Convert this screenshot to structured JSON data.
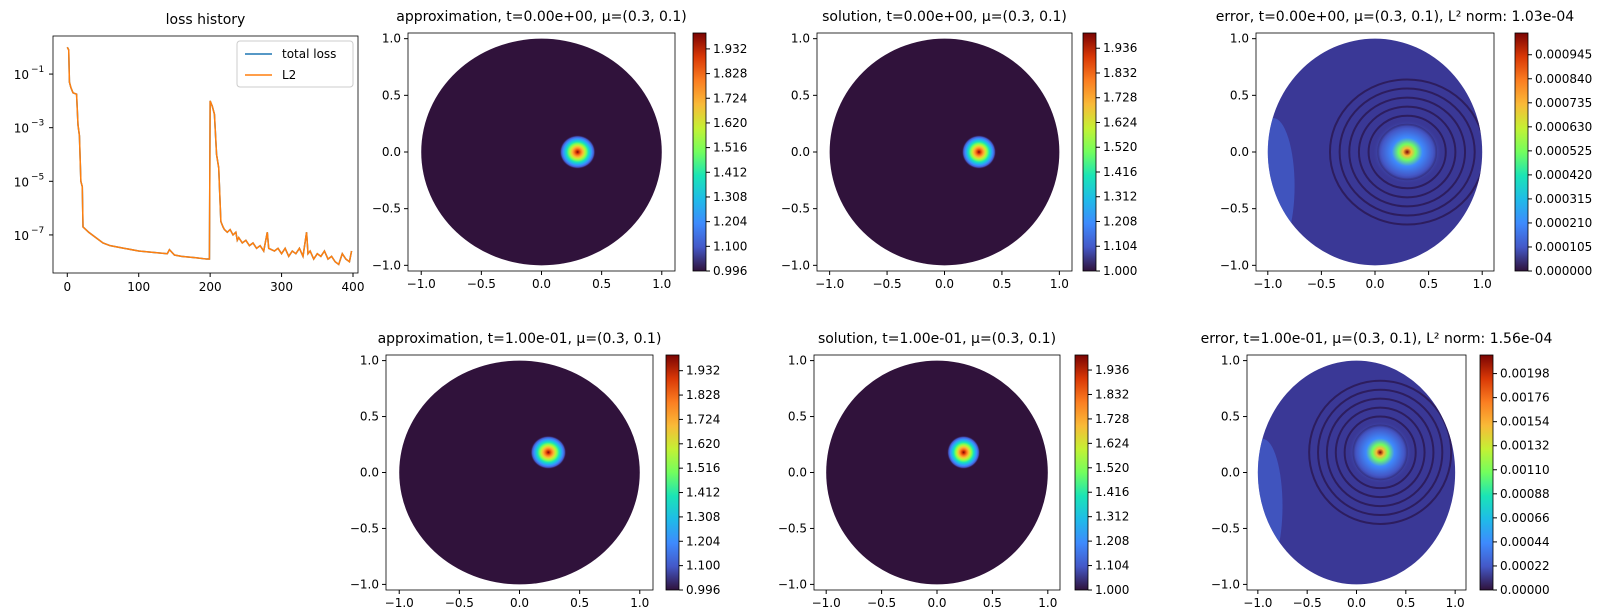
{
  "colors": {
    "total_loss": "#1f77b4",
    "l2": "#ff7f0e",
    "colormap": "turbo"
  },
  "chart_data": [
    {
      "type": "line",
      "title": "loss history",
      "yscale": "log",
      "xlim": [
        -20,
        407
      ],
      "ylim_log10": [
        -8.42,
        0.42
      ],
      "xticks": [
        "0",
        "100",
        "200",
        "300",
        "400"
      ],
      "xtick_values": [
        0,
        100,
        200,
        300,
        400
      ],
      "yticks": [
        "10",
        "10",
        "10",
        "10"
      ],
      "ytick_exponents": [
        "−1",
        "−3",
        "−5",
        "−7"
      ],
      "ytick_values_log10": [
        -1,
        -3,
        -5,
        -7
      ],
      "legend": "top-right",
      "series": [
        {
          "name": "total loss",
          "x": [
            0,
            2,
            3,
            5,
            8,
            13,
            15,
            17,
            19,
            21,
            22,
            30,
            40,
            50,
            60,
            80,
            100,
            120,
            140,
            143,
            150,
            160,
            180,
            195,
            199,
            200,
            203,
            206,
            209,
            212,
            215,
            218,
            220,
            224,
            228,
            232,
            236,
            238,
            240,
            245,
            250,
            255,
            260,
            265,
            270,
            275,
            280,
            282,
            290,
            295,
            300,
            305,
            310,
            315,
            320,
            325,
            330,
            335,
            337,
            340,
            345,
            350,
            355,
            360,
            365,
            370,
            375,
            380,
            385,
            390,
            395,
            398
          ],
          "y_log10": [
            0,
            -0.1,
            -1.3,
            -1.5,
            -1.7,
            -1.75,
            -2.9,
            -3.3,
            -5.0,
            -5.2,
            -6.7,
            -6.9,
            -7.1,
            -7.3,
            -7.4,
            -7.5,
            -7.6,
            -7.65,
            -7.7,
            -7.55,
            -7.75,
            -7.8,
            -7.85,
            -7.9,
            -7.9,
            -2.0,
            -2.2,
            -2.5,
            -4.0,
            -4.5,
            -6.5,
            -6.7,
            -6.8,
            -6.9,
            -6.8,
            -7.0,
            -6.9,
            -7.2,
            -7.1,
            -7.3,
            -7.2,
            -7.4,
            -7.3,
            -7.5,
            -7.4,
            -7.6,
            -6.9,
            -7.5,
            -7.6,
            -7.5,
            -7.7,
            -7.5,
            -7.8,
            -7.6,
            -7.7,
            -7.5,
            -7.8,
            -6.9,
            -7.7,
            -7.6,
            -7.9,
            -7.7,
            -7.8,
            -7.6,
            -7.9,
            -7.8,
            -8.0,
            -8.1,
            -7.7,
            -7.9,
            -8.0,
            -7.6
          ]
        },
        {
          "name": "L2",
          "x": [
            0,
            2,
            3,
            5,
            8,
            13,
            15,
            17,
            19,
            21,
            22,
            30,
            40,
            50,
            60,
            80,
            100,
            120,
            140,
            143,
            150,
            160,
            180,
            195,
            199,
            200,
            203,
            206,
            209,
            212,
            215,
            218,
            220,
            224,
            228,
            232,
            236,
            238,
            240,
            245,
            250,
            255,
            260,
            265,
            270,
            275,
            280,
            282,
            290,
            295,
            300,
            305,
            310,
            315,
            320,
            325,
            330,
            335,
            337,
            340,
            345,
            350,
            355,
            360,
            365,
            370,
            375,
            380,
            385,
            390,
            395,
            398
          ],
          "y_log10": [
            0,
            -0.1,
            -1.3,
            -1.5,
            -1.7,
            -1.75,
            -2.9,
            -3.3,
            -5.0,
            -5.2,
            -6.7,
            -6.9,
            -7.1,
            -7.3,
            -7.4,
            -7.5,
            -7.6,
            -7.65,
            -7.7,
            -7.55,
            -7.75,
            -7.8,
            -7.85,
            -7.9,
            -7.9,
            -2.0,
            -2.2,
            -2.5,
            -4.0,
            -4.5,
            -6.5,
            -6.7,
            -6.8,
            -6.9,
            -6.8,
            -7.0,
            -6.9,
            -7.2,
            -7.1,
            -7.3,
            -7.2,
            -7.4,
            -7.3,
            -7.5,
            -7.4,
            -7.6,
            -6.9,
            -7.5,
            -7.6,
            -7.5,
            -7.7,
            -7.5,
            -7.8,
            -7.6,
            -7.7,
            -7.5,
            -7.8,
            -6.9,
            -7.7,
            -7.6,
            -7.9,
            -7.7,
            -7.8,
            -7.6,
            -7.9,
            -7.8,
            -8.0,
            -8.1,
            -7.7,
            -7.9,
            -8.0,
            -7.6
          ]
        }
      ]
    },
    {
      "type": "heatmap",
      "kind": "field",
      "title": "approximation, t=0.00e+00, μ=(0.3, 0.1)",
      "peak": [
        0.3,
        0.0
      ],
      "vmin": 0.996,
      "vmax": 1.999,
      "xticks": [
        "−1.0",
        "−0.5",
        "0.0",
        "0.5",
        "1.0"
      ],
      "yticks": [
        "1.0",
        "0.5",
        "0.0",
        "−0.5",
        "−1.0"
      ],
      "cbar_ticks": [
        "1.932",
        "1.828",
        "1.724",
        "1.620",
        "1.516",
        "1.412",
        "1.308",
        "1.204",
        "1.100",
        "0.996"
      ]
    },
    {
      "type": "heatmap",
      "kind": "field",
      "title": "solution, t=0.00e+00, μ=(0.3, 0.1)",
      "peak": [
        0.3,
        0.0
      ],
      "vmin": 1.0,
      "vmax": 2.0,
      "xticks": [
        "−1.0",
        "−0.5",
        "0.0",
        "0.5",
        "1.0"
      ],
      "yticks": [
        "1.0",
        "0.5",
        "0.0",
        "−0.5",
        "−1.0"
      ],
      "cbar_ticks": [
        "1.936",
        "1.832",
        "1.728",
        "1.624",
        "1.520",
        "1.416",
        "1.312",
        "1.208",
        "1.104",
        "1.000"
      ]
    },
    {
      "type": "heatmap",
      "kind": "error",
      "title": "error, t=0.00e+00, μ=(0.3, 0.1), L² norm: 1.03e-04",
      "peak": [
        0.3,
        0.0
      ],
      "vmin": 0.0,
      "vmax": 0.00104,
      "xticks": [
        "−1.0",
        "−0.5",
        "0.0",
        "0.5",
        "1.0"
      ],
      "yticks": [
        "1.0",
        "0.5",
        "0.0",
        "−0.5",
        "−1.0"
      ],
      "cbar_ticks": [
        "0.000945",
        "0.000840",
        "0.000735",
        "0.000630",
        "0.000525",
        "0.000420",
        "0.000315",
        "0.000210",
        "0.000105",
        "0.000000"
      ]
    },
    {
      "type": "heatmap",
      "kind": "field",
      "title": "approximation, t=1.00e-01, μ=(0.3, 0.1)",
      "peak": [
        0.24,
        0.18
      ],
      "vmin": 0.996,
      "vmax": 1.999,
      "xticks": [
        "−1.0",
        "−0.5",
        "0.0",
        "0.5",
        "1.0"
      ],
      "yticks": [
        "1.0",
        "0.5",
        "0.0",
        "−0.5",
        "−1.0"
      ],
      "cbar_ticks": [
        "1.932",
        "1.828",
        "1.724",
        "1.620",
        "1.516",
        "1.412",
        "1.308",
        "1.204",
        "1.100",
        "0.996"
      ]
    },
    {
      "type": "heatmap",
      "kind": "field",
      "title": "solution, t=1.00e-01, μ=(0.3, 0.1)",
      "peak": [
        0.24,
        0.18
      ],
      "vmin": 1.0,
      "vmax": 2.0,
      "xticks": [
        "−1.0",
        "−0.5",
        "0.0",
        "0.5",
        "1.0"
      ],
      "yticks": [
        "1.0",
        "0.5",
        "0.0",
        "−0.5",
        "−1.0"
      ],
      "cbar_ticks": [
        "1.936",
        "1.832",
        "1.728",
        "1.624",
        "1.520",
        "1.416",
        "1.312",
        "1.208",
        "1.104",
        "1.000"
      ]
    },
    {
      "type": "heatmap",
      "kind": "error",
      "title": "error, t=1.00e-01, μ=(0.3, 0.1), L² norm: 1.56e-04",
      "peak": [
        0.24,
        0.18
      ],
      "vmin": 0.0,
      "vmax": 0.00215,
      "xticks": [
        "−1.0",
        "−0.5",
        "0.0",
        "0.5",
        "1.0"
      ],
      "yticks": [
        "1.0",
        "0.5",
        "0.0",
        "−0.5",
        "−1.0"
      ],
      "cbar_ticks": [
        "0.00198",
        "0.00176",
        "0.00154",
        "0.00132",
        "0.00110",
        "0.00088",
        "0.00066",
        "0.00044",
        "0.00022",
        "0.00000"
      ]
    }
  ]
}
